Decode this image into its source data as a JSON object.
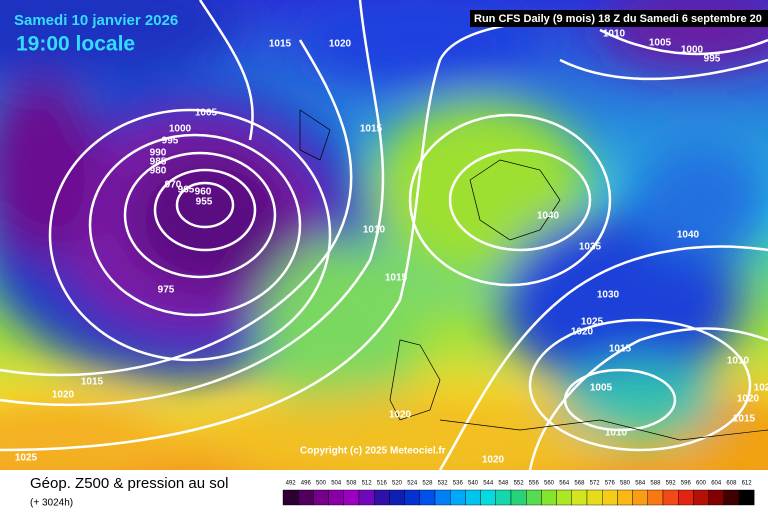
{
  "header": {
    "date": "Samedi 10 janvier 2026",
    "time": "19:00 locale",
    "run": "Run CFS Daily (9 mois) 18 Z du Samedi 6 septembre 20"
  },
  "isobar_labels": [
    "1015",
    "1020",
    "1010",
    "1005",
    "1000",
    "995",
    "1005",
    "1000",
    "995",
    "990",
    "985",
    "980",
    "970",
    "965",
    "960",
    "955",
    "1015",
    "1040",
    "1040",
    "1035",
    "1010",
    "1015",
    "975",
    "1030",
    "1025",
    "1020",
    "1015",
    "1010",
    "1005",
    "1015",
    "1020",
    "1020",
    "1020",
    "1015",
    "1010",
    "1020",
    "1025",
    "102"
  ],
  "copyright": "Copyright (c) 2025 Meteociel.fr",
  "footer": {
    "title": "Géop. Z500 & pression au sol",
    "subtitle": "(+ 3024h)"
  },
  "scale": {
    "labels": [
      492,
      496,
      500,
      504,
      508,
      512,
      516,
      520,
      524,
      528,
      532,
      536,
      540,
      544,
      548,
      552,
      556,
      560,
      564,
      568,
      572,
      576,
      580,
      584,
      588,
      592,
      596,
      600,
      604,
      608,
      612
    ]
  }
}
